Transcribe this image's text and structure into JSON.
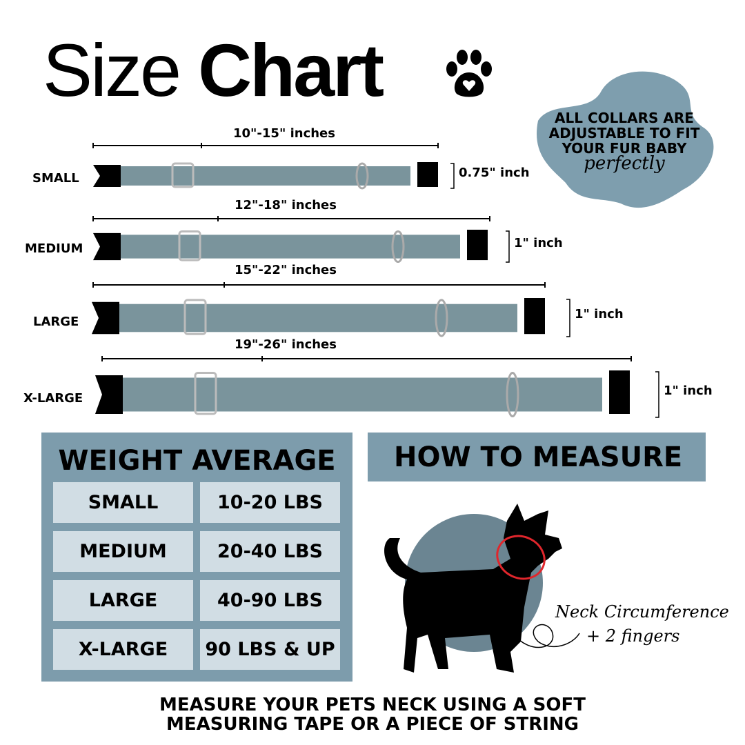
{
  "title": {
    "light": "Size ",
    "bold": "Chart"
  },
  "badge": {
    "lines": [
      "ALL COLLARS ARE",
      "ADJUSTABLE TO FIT",
      "YOUR FUR BABY"
    ],
    "script": "perfectly"
  },
  "collars": [
    {
      "size": "SMALL",
      "length": "10\"-15\" inches",
      "width": "0.75\" inch"
    },
    {
      "size": "MEDIUM",
      "length": "12\"-18\" inches",
      "width": "1\" inch"
    },
    {
      "size": "LARGE",
      "length": "15\"-22\" inches",
      "width": "1\" inch"
    },
    {
      "size": "X-LARGE",
      "length": "19\"-26\" inches",
      "width": "1\" inch"
    }
  ],
  "weight": {
    "title": "WEIGHT AVERAGE",
    "rows": [
      {
        "size": "SMALL",
        "weight": "10-20 LBS"
      },
      {
        "size": "MEDIUM",
        "weight": "20-40 LBS"
      },
      {
        "size": "LARGE",
        "weight": "40-90 LBS"
      },
      {
        "size": "X-LARGE",
        "weight": "90 LBS & UP"
      }
    ]
  },
  "measure": {
    "title": "HOW TO MEASURE",
    "note1": "Neck Circumference",
    "note2": "+ 2 fingers"
  },
  "footer": {
    "line1": "MEASURE YOUR PETS NECK USING A SOFT",
    "line2": "MEASURING TAPE OR A PIECE OF STRING"
  },
  "colors": {
    "panel": "#7d9cac",
    "cell": "#d1dde4",
    "collar": "#7a949c",
    "circle": "#6b8592",
    "blob": "#7e9eae",
    "accent": "#e0262c"
  }
}
